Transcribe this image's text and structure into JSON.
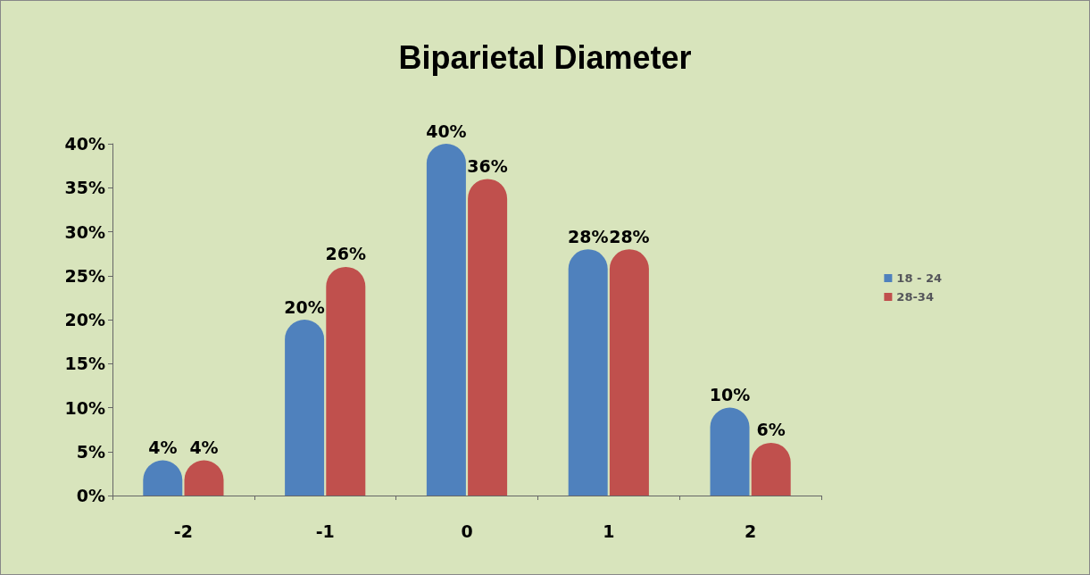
{
  "chart_data": {
    "type": "bar",
    "title": "Biparietal Diameter",
    "categories": [
      "-2",
      "-1",
      "0",
      "1",
      "2"
    ],
    "series": [
      {
        "name": "18 - 24",
        "color": "#4f81bd",
        "values": [
          4,
          20,
          40,
          28,
          10
        ],
        "value_labels": [
          "4%",
          "20%",
          "40%",
          "28%",
          "10%"
        ]
      },
      {
        "name": "28-34",
        "color": "#c0504d",
        "values": [
          4,
          26,
          36,
          28,
          6
        ],
        "value_labels": [
          "4%",
          "26%",
          "36%",
          "28%",
          "6%"
        ]
      }
    ],
    "ylim": [
      0,
      40
    ],
    "yticks": [
      {
        "value": 0,
        "label": "0%"
      },
      {
        "value": 5,
        "label": "5%"
      },
      {
        "value": 10,
        "label": "10%"
      },
      {
        "value": 15,
        "label": "15%"
      },
      {
        "value": 20,
        "label": "20%"
      },
      {
        "value": 25,
        "label": "25%"
      },
      {
        "value": 30,
        "label": "30%"
      },
      {
        "value": 35,
        "label": "35%"
      },
      {
        "value": 40,
        "label": "40%"
      }
    ],
    "grid": false,
    "legend": "right"
  }
}
